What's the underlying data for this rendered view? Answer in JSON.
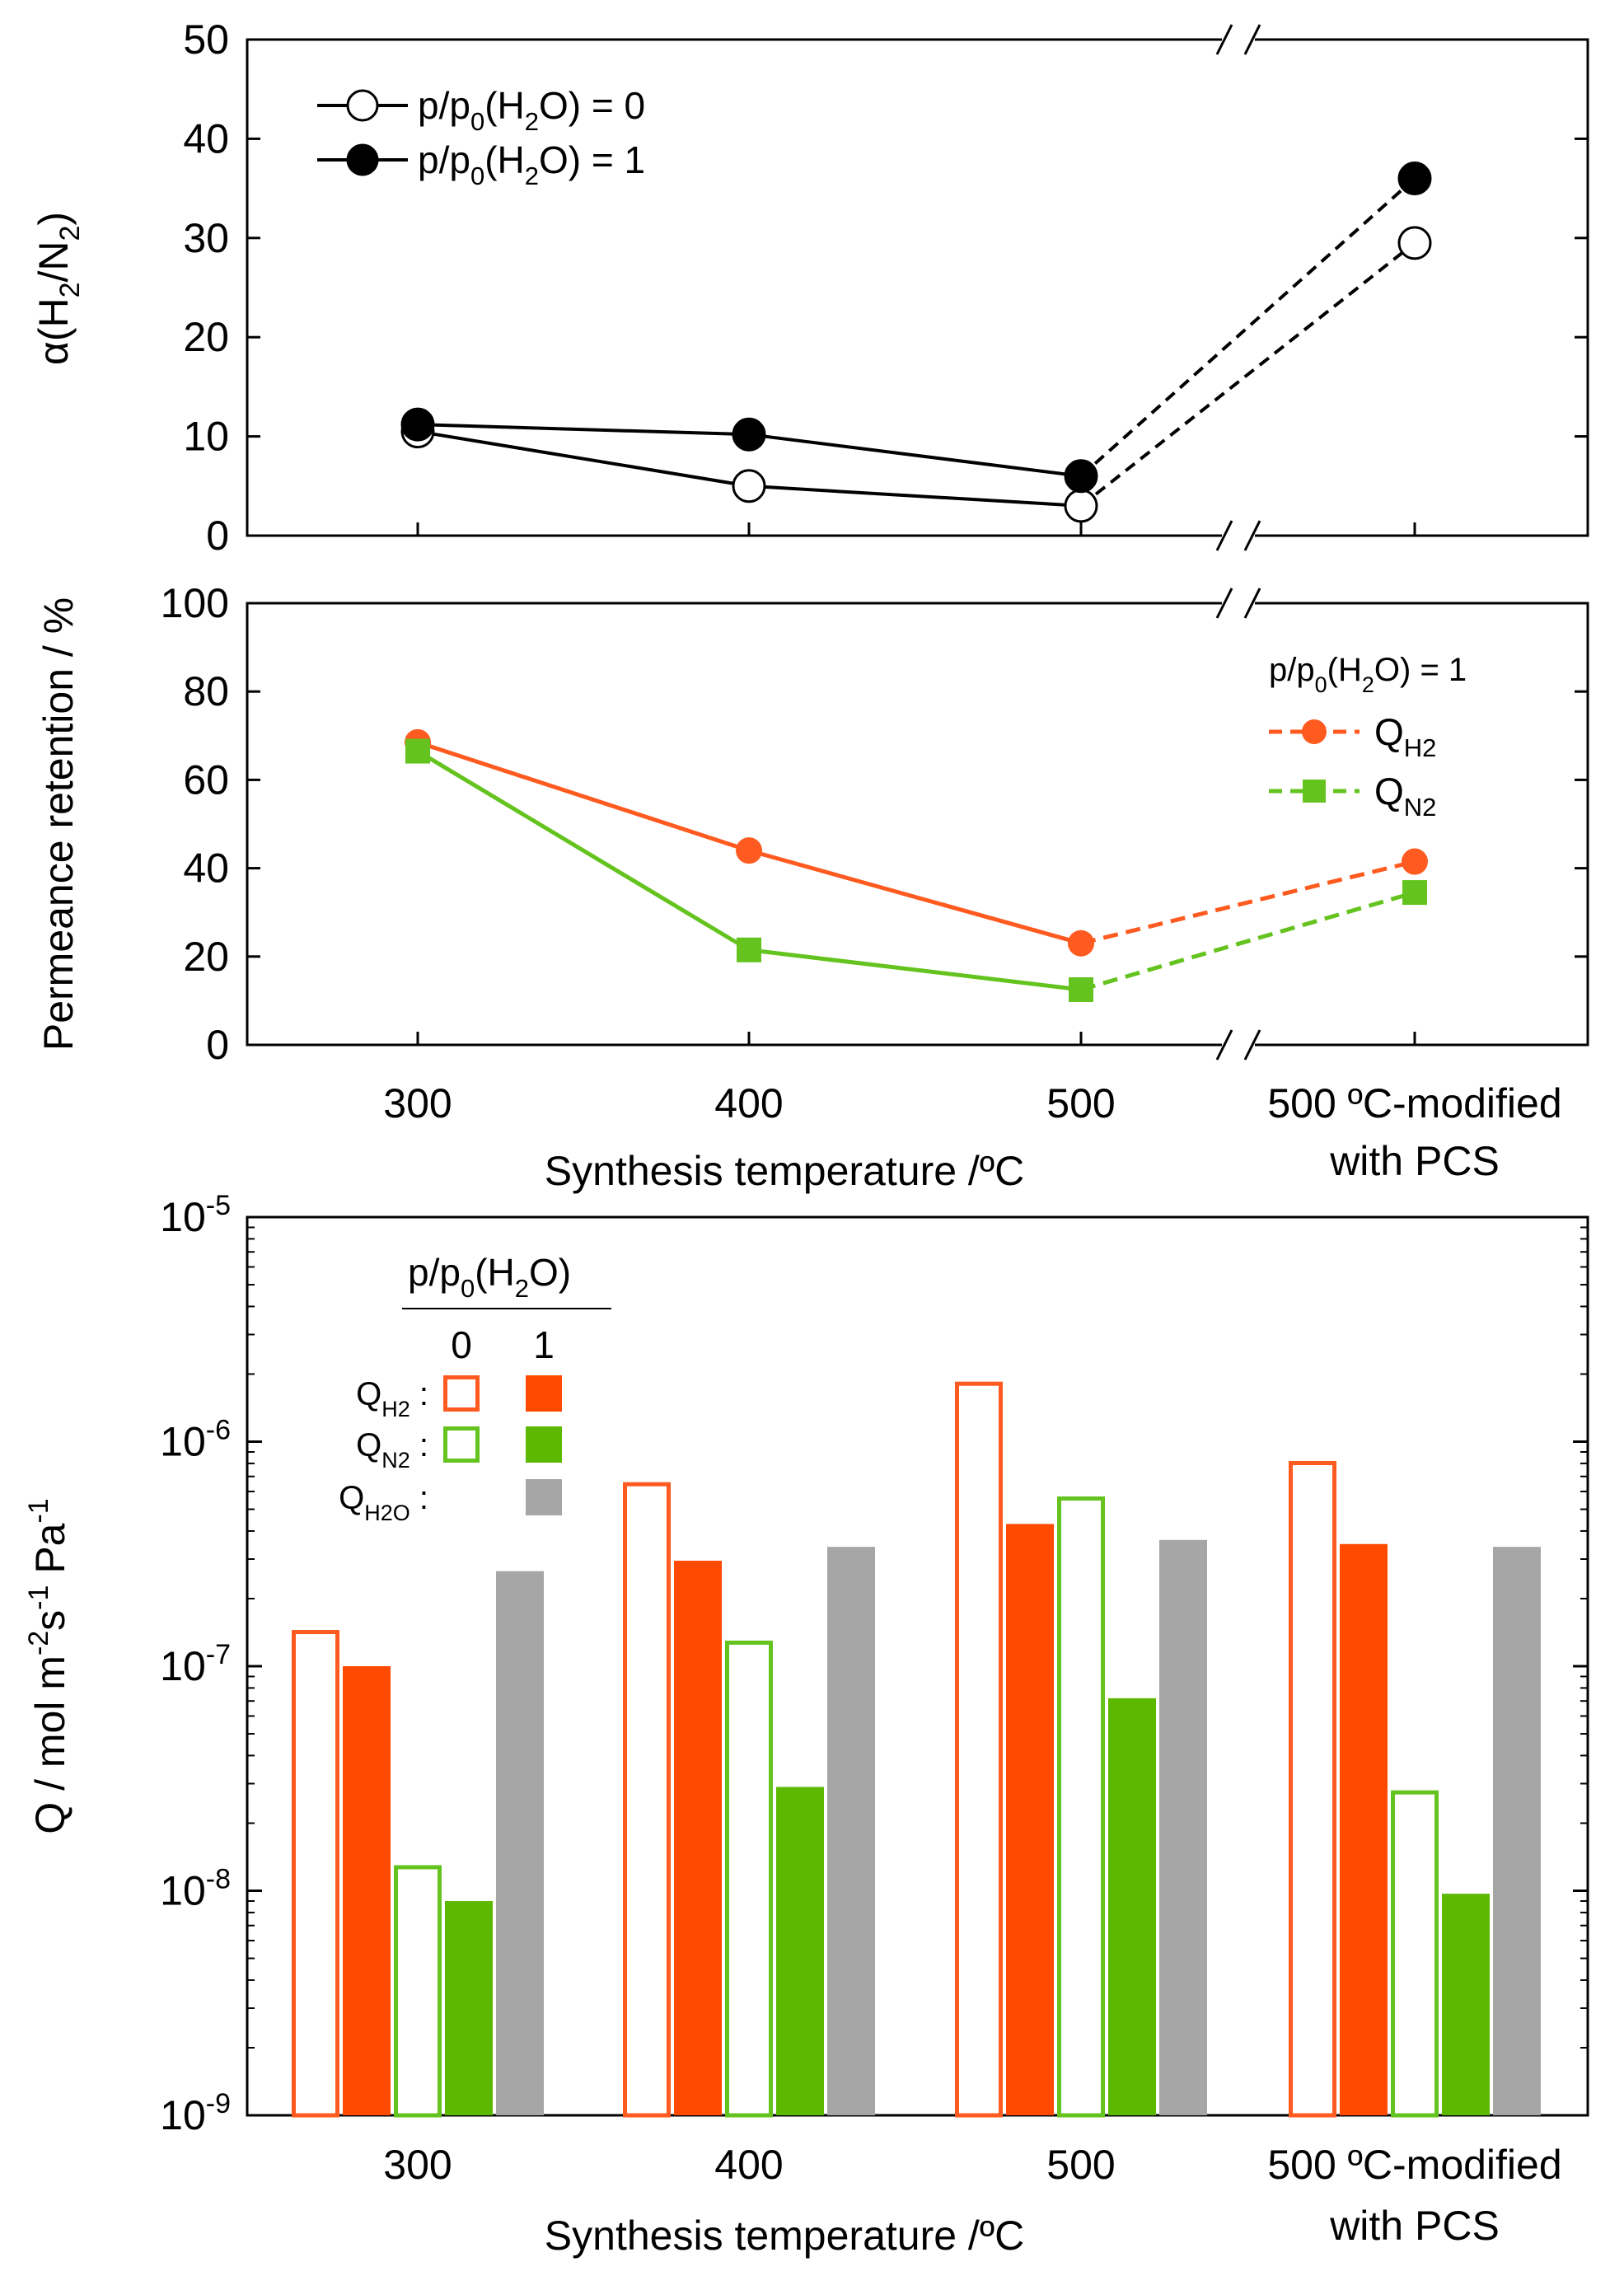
{
  "chart_data": [
    {
      "id": "alpha",
      "type": "line",
      "title": "",
      "ylabel": "α(H2/N2)",
      "ylabel_parts": {
        "pre": "α(H",
        "sub1": "2",
        "mid": "/N",
        "sub2": "2",
        "post": ")"
      },
      "ylim": [
        0,
        50
      ],
      "yticks": [
        "0",
        "10",
        "20",
        "30",
        "40",
        "50"
      ],
      "categories": [
        "300",
        "400",
        "500",
        "500 ºC-modified with PCS"
      ],
      "axis_break": "between 500 and 500 ºC-modified with PCS",
      "series": [
        {
          "name": "p/p0(H2O) = 0",
          "legend": {
            "pre": "p/p",
            "sub": "0",
            "mid": "(H",
            "sub2": "2",
            "post": "O) = 0"
          },
          "marker": "open-circle",
          "values": [
            10.5,
            5,
            3,
            29.5
          ]
        },
        {
          "name": "p/p0(H2O) = 1",
          "legend": {
            "pre": "p/p",
            "sub": "0",
            "mid": "(H",
            "sub2": "2",
            "post": "O) = 1"
          },
          "marker": "filled-circle",
          "values": [
            11.2,
            10.2,
            6,
            36
          ]
        }
      ]
    },
    {
      "id": "retention",
      "type": "line",
      "title": "",
      "ylabel": "Permeance retention / %",
      "ylim": [
        0,
        100
      ],
      "yticks": [
        "0",
        "20",
        "40",
        "60",
        "80",
        "100"
      ],
      "xlabel": "Synthesis temperature /ºC",
      "categories": [
        "300",
        "400",
        "500",
        "500 ºC-modified with PCS"
      ],
      "category_labels": [
        "300",
        "400",
        "500"
      ],
      "special_category": [
        "500 ºC-modified",
        "with PCS"
      ],
      "legend_title": {
        "pre": "p/p",
        "sub": "0",
        "mid": "(H",
        "sub2": "2",
        "post": "O) = 1"
      },
      "series": [
        {
          "name": "QH2",
          "legend": {
            "main": "Q",
            "sub_main": "H",
            "sub": "2"
          },
          "color": "#ff5a1f",
          "marker": "circle",
          "values": [
            68.5,
            44,
            23,
            41.5
          ]
        },
        {
          "name": "QN2",
          "legend": {
            "main": "Q",
            "sub_main": "N",
            "sub": "2"
          },
          "color": "#64c31e",
          "marker": "square",
          "values": [
            66.5,
            21.5,
            12.5,
            34.5
          ]
        }
      ]
    },
    {
      "id": "permeance",
      "type": "bar",
      "title": "",
      "ylabel": "Q / mol m-2 s-1 Pa-1",
      "ylabel_parts": [
        "Q / mol m",
        "-2",
        "s",
        "-1",
        " Pa",
        "-1"
      ],
      "yscale": "log",
      "ylim": [
        1e-09,
        1e-05
      ],
      "yticks": [
        {
          "base": "10",
          "exp": "-9"
        },
        {
          "base": "10",
          "exp": "-8"
        },
        {
          "base": "10",
          "exp": "-7"
        },
        {
          "base": "10",
          "exp": "-6"
        },
        {
          "base": "10",
          "exp": "-5"
        }
      ],
      "xlabel": "Synthesis temperature /ºC",
      "categories": [
        "300",
        "400",
        "500",
        "500 ºC-modified with PCS"
      ],
      "category_labels": [
        "300",
        "400",
        "500"
      ],
      "special_category": [
        "500 ºC-modified",
        "with PCS"
      ],
      "legend_header": {
        "pre": "p/p",
        "sub": "0",
        "mid": "(H",
        "sub2": "2",
        "post": "O)"
      },
      "legend_cols": [
        "0",
        "1"
      ],
      "legend_rows": [
        {
          "main": "Q",
          "sub": "H",
          "sub2": "2",
          "colon": ":"
        },
        {
          "main": "Q",
          "sub": "N",
          "sub2": "2",
          "colon": ":"
        },
        {
          "main": "Q",
          "sub": "H",
          "sub2": "2",
          "sub3": "O",
          "colon": ":"
        }
      ],
      "series": [
        {
          "name": "QH2, p/p0(H2O)=0",
          "style": "open",
          "color": "#ff5a1f",
          "values": [
            1.45e-07,
            6.6e-07,
            1.85e-06,
            8.2e-07
          ]
        },
        {
          "name": "QH2, p/p0(H2O)=1",
          "style": "filled",
          "color": "#ff4a00",
          "values": [
            1e-07,
            2.95e-07,
            4.3e-07,
            3.5e-07
          ]
        },
        {
          "name": "QN2, p/p0(H2O)=0",
          "style": "open",
          "color": "#64c31e",
          "values": [
            1.3e-08,
            1.3e-07,
            5.7e-07,
            2.8e-08
          ]
        },
        {
          "name": "QN2, p/p0(H2O)=1",
          "style": "filled",
          "color": "#5cb900",
          "values": [
            9e-09,
            2.9e-08,
            7.2e-08,
            9.7e-09
          ]
        },
        {
          "name": "QH2O, p/p0(H2O)=1",
          "style": "filled",
          "color": "#a6a6a6",
          "values": [
            2.65e-07,
            3.4e-07,
            3.65e-07,
            3.4e-07
          ]
        }
      ]
    }
  ]
}
